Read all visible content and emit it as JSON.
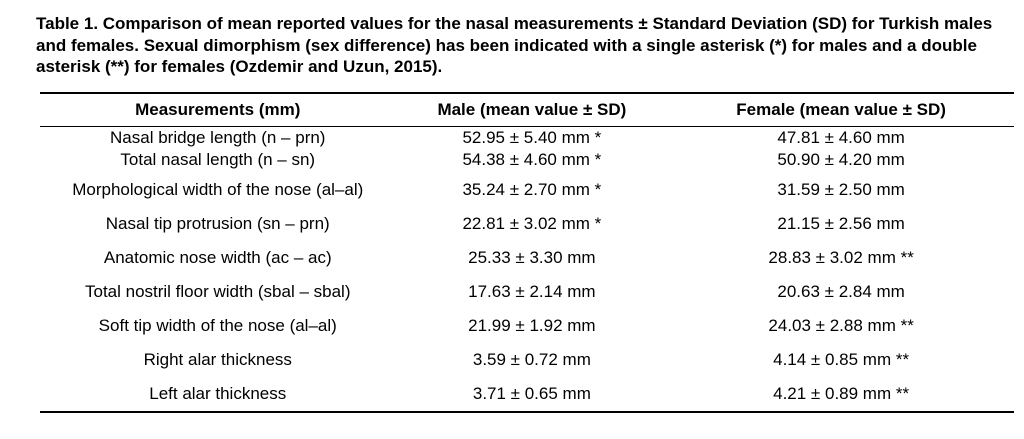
{
  "caption": {
    "text": "Table 1. Comparison of mean reported values for the nasal measurements ± Standard Deviation (SD) for Turkish males and females. Sexual dimorphism (sex difference) has been indicated with a single asterisk (*) for males and a double asterisk (**) for females (Ozdemir and Uzun, 2015)."
  },
  "table": {
    "columns": [
      "Measurements (mm)",
      "Male (mean value ± SD)",
      "Female (mean value ± SD)"
    ],
    "rows": [
      {
        "measurement": "Nasal bridge length (n – prn)",
        "male": "52.95 ± 5.40 mm *",
        "female": "47.81 ± 4.60 mm"
      },
      {
        "measurement": "Total nasal length (n – sn)",
        "male": "54.38 ± 4.60 mm *",
        "female": "50.90 ± 4.20 mm"
      },
      {
        "measurement": "Morphological width of the nose (al–al)",
        "male": "35.24 ± 2.70 mm *",
        "female": "31.59 ± 2.50 mm"
      },
      {
        "measurement": "Nasal tip protrusion (sn – prn)",
        "male": "22.81 ± 3.02 mm *",
        "female": "21.15 ± 2.56 mm"
      },
      {
        "measurement": "Anatomic nose width (ac – ac)",
        "male": "25.33 ± 3.30 mm",
        "female": "28.83 ± 3.02 mm **"
      },
      {
        "measurement": "Total nostril floor width (sbal – sbal)",
        "male": "17.63 ± 2.14 mm",
        "female": "20.63 ± 2.84 mm"
      },
      {
        "measurement": "Soft tip width of the nose (al–al)",
        "male": "21.99 ± 1.92 mm",
        "female": "24.03 ± 2.88 mm **"
      },
      {
        "measurement": "Right alar thickness",
        "male": "3.59 ± 0.72 mm",
        "female": "4.14 ± 0.85 mm **"
      },
      {
        "measurement": "Left alar thickness",
        "male": "3.71 ± 0.65 mm",
        "female": "4.21 ± 0.89 mm **"
      }
    ]
  }
}
